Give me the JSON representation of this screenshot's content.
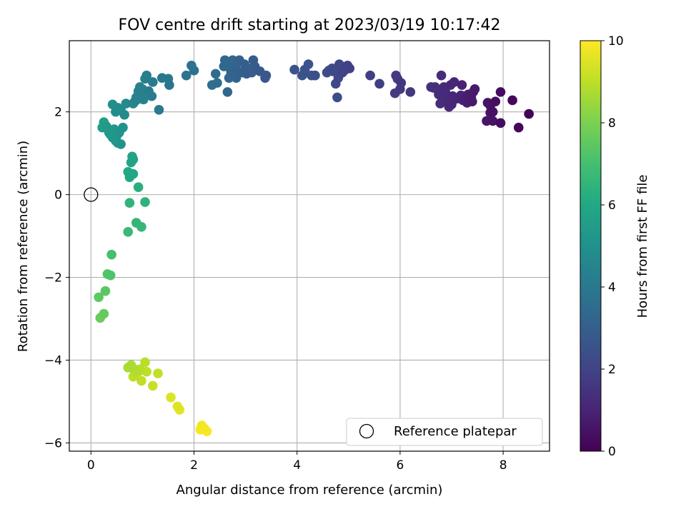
{
  "chart_data": {
    "type": "scatter",
    "title": "FOV centre drift starting at 2023/03/19 10:17:42",
    "xlabel": "Angular distance from reference (arcmin)",
    "ylabel": "Rotation from reference (arcmin)",
    "xlim": [
      -0.42,
      8.9
    ],
    "ylim": [
      -6.2,
      3.72
    ],
    "xticks": [
      0,
      2,
      4,
      6,
      8
    ],
    "yticks": [
      -6,
      -4,
      -2,
      0,
      2
    ],
    "xtick_labels": [
      "0",
      "2",
      "4",
      "6",
      "8"
    ],
    "ytick_labels": [
      "−6",
      "−4",
      "−2",
      "0",
      "2"
    ],
    "grid": true,
    "legend": {
      "location": "lower right",
      "entries": [
        "Reference platepar"
      ]
    },
    "colorbar": {
      "label": "Hours from first FF file",
      "range": [
        0,
        10
      ],
      "ticks": [
        0,
        2,
        4,
        6,
        8,
        10
      ],
      "tick_labels": [
        "0",
        "2",
        "4",
        "6",
        "8",
        "10"
      ],
      "colormap": "viridis"
    },
    "reference_point": {
      "name": "Reference platepar",
      "x": 0,
      "y": 0
    },
    "points": [
      [
        8.5,
        1.95,
        0.1
      ],
      [
        8.3,
        1.62,
        0.15
      ],
      [
        8.18,
        2.28,
        0.2
      ],
      [
        7.95,
        2.48,
        0.3
      ],
      [
        7.95,
        1.73,
        0.35
      ],
      [
        7.85,
        2.25,
        0.4
      ],
      [
        7.8,
        2.0,
        0.45
      ],
      [
        7.8,
        1.78,
        0.5
      ],
      [
        7.75,
        2.15,
        0.52
      ],
      [
        7.7,
        2.22,
        0.55
      ],
      [
        7.68,
        1.78,
        0.6
      ],
      [
        7.75,
        1.98,
        0.62
      ],
      [
        7.42,
        2.48,
        0.7
      ],
      [
        7.38,
        2.35,
        0.75
      ],
      [
        7.32,
        2.42,
        0.8
      ],
      [
        7.3,
        2.22,
        0.85
      ],
      [
        7.22,
        2.28,
        0.9
      ],
      [
        7.2,
        2.65,
        0.95
      ],
      [
        7.18,
        2.4,
        1.0
      ],
      [
        7.1,
        2.32,
        1.05
      ],
      [
        7.05,
        2.72,
        1.08
      ],
      [
        7.02,
        2.38,
        1.1
      ],
      [
        6.98,
        2.65,
        1.12
      ],
      [
        6.95,
        2.12,
        1.15
      ],
      [
        6.92,
        2.28,
        1.18
      ],
      [
        6.88,
        2.48,
        1.2
      ],
      [
        6.85,
        2.6,
        1.22
      ],
      [
        6.82,
        2.35,
        1.25
      ],
      [
        6.8,
        2.88,
        1.28
      ],
      [
        6.78,
        2.2,
        1.3
      ],
      [
        6.75,
        2.42,
        1.32
      ],
      [
        6.72,
        2.55,
        1.35
      ],
      [
        6.68,
        2.6,
        1.38
      ],
      [
        6.65,
        2.58,
        1.4
      ],
      [
        6.6,
        2.6,
        1.42
      ],
      [
        7.45,
        2.55,
        0.68
      ],
      [
        7.4,
        2.25,
        0.72
      ],
      [
        7.0,
        2.18,
        1.1
      ],
      [
        6.2,
        2.48,
        1.55
      ],
      [
        6.02,
        2.7,
        1.6
      ],
      [
        6.0,
        2.55,
        1.65
      ],
      [
        5.95,
        2.8,
        1.7
      ],
      [
        5.92,
        2.88,
        1.72
      ],
      [
        5.9,
        2.45,
        1.75
      ],
      [
        5.6,
        2.68,
        1.8
      ],
      [
        5.42,
        2.88,
        1.85
      ],
      [
        5.02,
        3.05,
        1.9
      ],
      [
        4.98,
        3.12,
        1.95
      ],
      [
        4.92,
        3.0,
        2.0
      ],
      [
        4.88,
        2.95,
        2.05
      ],
      [
        4.85,
        3.1,
        2.1
      ],
      [
        4.82,
        3.15,
        2.12
      ],
      [
        4.8,
        2.82,
        2.15
      ],
      [
        4.78,
        3.0,
        2.18
      ],
      [
        4.75,
        2.68,
        2.2
      ],
      [
        4.72,
        3.02,
        2.22
      ],
      [
        4.7,
        2.98,
        2.25
      ],
      [
        4.68,
        3.05,
        2.28
      ],
      [
        4.62,
        3.0,
        2.3
      ],
      [
        4.58,
        2.95,
        2.32
      ],
      [
        4.78,
        2.35,
        2.35
      ],
      [
        4.35,
        2.88,
        2.4
      ],
      [
        4.28,
        2.88,
        2.45
      ],
      [
        4.22,
        3.15,
        2.5
      ],
      [
        4.15,
        3.02,
        2.55
      ],
      [
        4.1,
        2.88,
        2.58
      ],
      [
        3.95,
        3.02,
        2.6
      ],
      [
        3.4,
        2.88,
        2.7
      ],
      [
        3.38,
        2.82,
        2.75
      ],
      [
        3.28,
        2.98,
        2.8
      ],
      [
        3.18,
        3.1,
        2.85
      ],
      [
        3.15,
        3.25,
        2.9
      ],
      [
        3.12,
        2.95,
        2.92
      ],
      [
        3.05,
        3.05,
        2.95
      ],
      [
        3.02,
        2.92,
        2.98
      ],
      [
        2.98,
        3.15,
        3.0
      ],
      [
        2.95,
        2.95,
        3.05
      ],
      [
        2.88,
        3.25,
        3.1
      ],
      [
        2.85,
        2.98,
        3.12
      ],
      [
        2.82,
        2.82,
        3.15
      ],
      [
        2.8,
        3.1,
        3.18
      ],
      [
        2.78,
        2.88,
        3.2
      ],
      [
        2.75,
        3.25,
        3.22
      ],
      [
        2.72,
        2.95,
        3.25
      ],
      [
        2.7,
        3.05,
        3.28
      ],
      [
        2.68,
        2.82,
        3.3
      ],
      [
        2.65,
        2.48,
        3.32
      ],
      [
        2.62,
        3.2,
        3.35
      ],
      [
        2.6,
        3.25,
        3.38
      ],
      [
        2.58,
        3.1,
        3.4
      ],
      [
        2.45,
        2.7,
        3.5
      ],
      [
        2.42,
        2.92,
        3.55
      ],
      [
        2.35,
        2.65,
        3.6
      ],
      [
        2.0,
        3.0,
        3.7
      ],
      [
        1.95,
        3.12,
        3.75
      ],
      [
        1.85,
        2.88,
        3.8
      ],
      [
        1.52,
        2.65,
        3.9
      ],
      [
        1.5,
        2.8,
        3.95
      ],
      [
        1.38,
        2.82,
        4.0
      ],
      [
        1.32,
        2.05,
        4.05
      ],
      [
        1.2,
        2.72,
        4.1
      ],
      [
        1.18,
        2.38,
        4.12
      ],
      [
        1.12,
        2.5,
        4.15
      ],
      [
        1.08,
        2.88,
        4.2
      ],
      [
        1.05,
        2.8,
        4.25
      ],
      [
        1.02,
        2.3,
        4.3
      ],
      [
        1.0,
        2.55,
        4.35
      ],
      [
        0.98,
        2.4,
        4.38
      ],
      [
        0.95,
        2.6,
        4.4
      ],
      [
        0.92,
        2.5,
        4.42
      ],
      [
        0.9,
        2.3,
        4.45
      ],
      [
        0.88,
        2.35,
        4.48
      ],
      [
        0.85,
        2.25,
        4.5
      ],
      [
        0.82,
        2.2,
        4.52
      ],
      [
        0.68,
        2.2,
        4.7
      ],
      [
        0.65,
        1.93,
        4.75
      ],
      [
        0.58,
        2.05,
        4.8
      ],
      [
        0.52,
        2.1,
        4.85
      ],
      [
        0.48,
        2.0,
        4.9
      ],
      [
        0.42,
        2.18,
        4.95
      ],
      [
        0.62,
        1.62,
        5.05
      ],
      [
        0.58,
        1.22,
        5.1
      ],
      [
        0.55,
        1.5,
        5.15
      ],
      [
        0.52,
        1.25,
        5.2
      ],
      [
        0.5,
        1.42,
        5.22
      ],
      [
        0.48,
        1.3,
        5.25
      ],
      [
        0.45,
        1.58,
        5.28
      ],
      [
        0.42,
        1.38,
        5.3
      ],
      [
        0.4,
        1.55,
        5.32
      ],
      [
        0.38,
        1.45,
        5.35
      ],
      [
        0.35,
        1.5,
        5.38
      ],
      [
        0.32,
        1.6,
        5.4
      ],
      [
        0.3,
        1.65,
        5.45
      ],
      [
        0.25,
        1.75,
        5.5
      ],
      [
        0.22,
        1.62,
        5.52
      ],
      [
        0.8,
        0.92,
        5.75
      ],
      [
        0.82,
        0.85,
        5.8
      ],
      [
        0.78,
        0.78,
        5.85
      ],
      [
        0.82,
        0.5,
        5.9
      ],
      [
        0.78,
        0.48,
        5.95
      ],
      [
        0.75,
        0.42,
        6.0
      ],
      [
        0.72,
        0.55,
        6.05
      ],
      [
        0.92,
        0.18,
        6.25
      ],
      [
        1.05,
        -0.18,
        6.4
      ],
      [
        0.75,
        -0.2,
        6.45
      ],
      [
        0.88,
        -0.68,
        6.55
      ],
      [
        0.98,
        -0.78,
        6.6
      ],
      [
        0.72,
        -0.9,
        6.7
      ],
      [
        0.4,
        -1.45,
        7.0
      ],
      [
        0.38,
        -1.95,
        7.2
      ],
      [
        0.32,
        -1.92,
        7.25
      ],
      [
        0.28,
        -2.33,
        7.4
      ],
      [
        0.15,
        -2.48,
        7.5
      ],
      [
        0.25,
        -2.88,
        7.6
      ],
      [
        0.18,
        -2.98,
        7.7
      ],
      [
        0.72,
        -4.18,
        8.7
      ],
      [
        0.78,
        -4.12,
        8.75
      ],
      [
        0.82,
        -4.2,
        8.8
      ],
      [
        0.85,
        -4.25,
        8.85
      ],
      [
        0.88,
        -4.3,
        8.88
      ],
      [
        0.92,
        -4.28,
        8.9
      ],
      [
        0.95,
        -4.22,
        8.92
      ],
      [
        1.05,
        -4.05,
        8.95
      ],
      [
        1.08,
        -4.28,
        8.98
      ],
      [
        0.82,
        -4.4,
        9.0
      ],
      [
        0.98,
        -4.5,
        9.05
      ],
      [
        1.3,
        -4.32,
        9.1
      ],
      [
        1.2,
        -4.62,
        9.15
      ],
      [
        1.55,
        -4.9,
        9.45
      ],
      [
        1.68,
        -5.12,
        9.55
      ],
      [
        1.72,
        -5.2,
        9.6
      ],
      [
        2.15,
        -5.58,
        9.85
      ],
      [
        2.12,
        -5.68,
        9.9
      ],
      [
        2.2,
        -5.65,
        9.92
      ],
      [
        2.25,
        -5.72,
        9.95
      ]
    ]
  }
}
